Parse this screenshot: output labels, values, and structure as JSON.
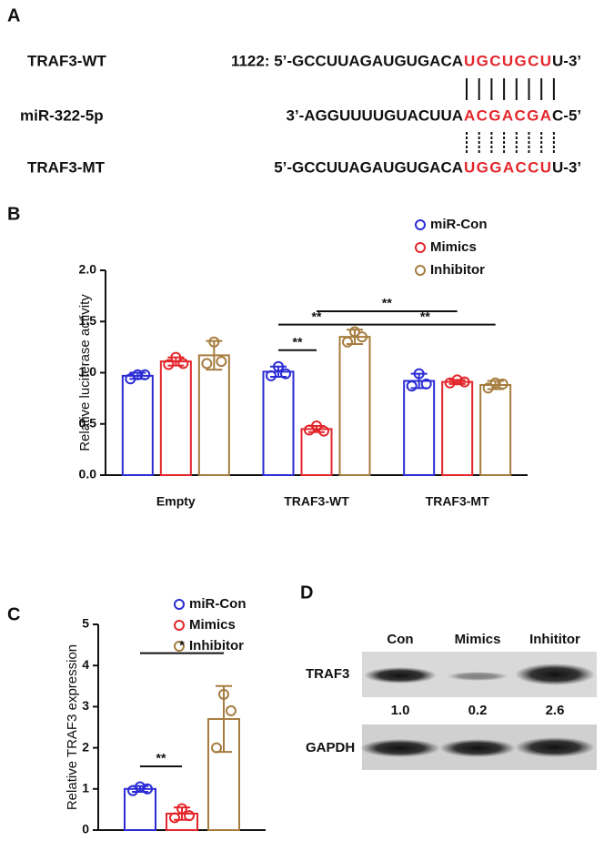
{
  "panel_a": {
    "panel_label": "A",
    "rows": [
      {
        "name": "TRAF3-WT",
        "prefix": "1122: 5’-GCCUUAGAUGUGACA",
        "highlight": "UGCUGCU",
        "suffix": "U-3’"
      },
      {
        "name": "miR-322-5p",
        "prefix": "3’-AGGUUUUGUACUUA",
        "highlight": "ACGACGA",
        "suffix": "C-5’"
      },
      {
        "name": "TRAF3-MT",
        "prefix": "5’-GCCUUAGAUGUGACA",
        "highlight": "UGGACCU",
        "suffix": "U-3’"
      }
    ]
  },
  "chart_data": [
    {
      "type": "bar",
      "panel_label": "B",
      "ylabel": "Relative luciferase activity",
      "categories": [
        "Empty",
        "TRAF3-WT",
        "TRAF3-MT"
      ],
      "series": [
        {
          "name": "miR-Con",
          "color": "#2b2bd6",
          "values": [
            0.97,
            1.01,
            0.92
          ],
          "errors": [
            0.03,
            0.05,
            0.07
          ],
          "points": [
            [
              0.94,
              0.98,
              0.98
            ],
            [
              0.97,
              1.06,
              0.99
            ],
            [
              0.87,
              0.99,
              0.89
            ]
          ]
        },
        {
          "name": "Mimics",
          "color": "#e3262b",
          "values": [
            1.11,
            0.45,
            0.91
          ],
          "errors": [
            0.04,
            0.03,
            0.02
          ],
          "points": [
            [
              1.08,
              1.15,
              1.09
            ],
            [
              0.44,
              0.48,
              0.43
            ],
            [
              0.9,
              0.93,
              0.91
            ]
          ]
        },
        {
          "name": "Inhibitor",
          "color": "#a67c3f",
          "values": [
            1.17,
            1.35,
            0.88
          ],
          "errors": [
            0.14,
            0.07,
            0.04
          ],
          "points": [
            [
              1.09,
              1.3,
              1.11
            ],
            [
              1.3,
              1.4,
              1.35
            ],
            [
              0.85,
              0.9,
              0.89
            ]
          ]
        }
      ],
      "ylim": [
        0,
        2
      ],
      "yticks": [
        {
          "value": 0,
          "label": "0.0"
        },
        {
          "value": 0.5,
          "label": "0.5"
        },
        {
          "value": 1,
          "label": "1.0"
        },
        {
          "value": 1.5,
          "label": "1.5"
        },
        {
          "value": 2,
          "label": "2.0"
        }
      ],
      "annotations": [
        {
          "text": "**",
          "y": 1.6,
          "from": [
            1,
            1
          ],
          "to": [
            2,
            1
          ]
        },
        {
          "text": "**",
          "y": 1.47,
          "from": [
            1,
            0
          ],
          "to": [
            1,
            2
          ]
        },
        {
          "text": "**",
          "y": 1.47,
          "from": [
            1,
            2
          ],
          "to": [
            2,
            2
          ]
        },
        {
          "text": "**",
          "y": 1.22,
          "from": [
            1,
            0
          ],
          "to": [
            1,
            1
          ]
        }
      ]
    },
    {
      "type": "bar",
      "panel_label": "C",
      "ylabel": "Relative TRAF3 expression",
      "categories": [
        null
      ],
      "series": [
        {
          "name": "miR-Con",
          "color": "#2b2bd6",
          "values": [
            1.0
          ],
          "errors": [
            0.07
          ],
          "points": [
            [
              0.96,
              1.05,
              1.0
            ]
          ]
        },
        {
          "name": "Mimics",
          "color": "#e3262b",
          "values": [
            0.4
          ],
          "errors": [
            0.15
          ],
          "points": [
            [
              0.3,
              0.52,
              0.35
            ]
          ]
        },
        {
          "name": "Inhibitor",
          "color": "#a67c3f",
          "values": [
            2.7
          ],
          "errors": [
            0.8
          ],
          "points": [
            [
              2.0,
              3.3,
              2.9
            ]
          ]
        }
      ],
      "ylim": [
        0,
        5
      ],
      "yticks": [
        0,
        1,
        2,
        3,
        4,
        5
      ],
      "annotations": [
        {
          "text": "**",
          "y": 1.55,
          "from": [
            0,
            0
          ],
          "to": [
            0,
            1
          ]
        },
        {
          "text": "*",
          "y": 4.3,
          "from": [
            0,
            0
          ],
          "to": [
            0,
            2
          ]
        }
      ]
    }
  ],
  "panel_d": {
    "panel_label": "D",
    "lanes": [
      "Con",
      "Mimics",
      "Inhititor"
    ],
    "blots": [
      "TRAF3",
      "GAPDH"
    ],
    "quantification": [
      "1.0",
      "0.2",
      "2.6"
    ]
  }
}
